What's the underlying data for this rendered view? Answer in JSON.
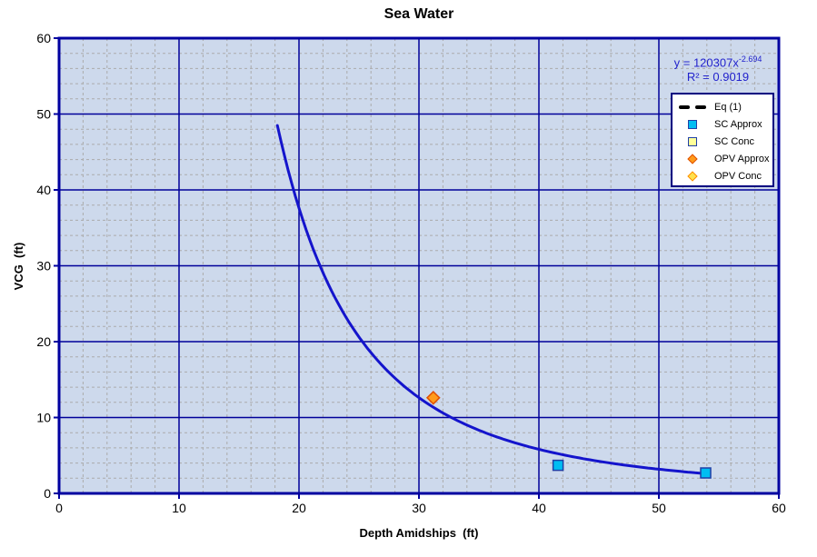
{
  "title": "Sea Water",
  "annotation": {
    "equation_base": "y = 120307x",
    "equation_exponent": "-2.694",
    "r_squared": "R² = 0.9019"
  },
  "colors": {
    "plot_bg": "#CDD9EC",
    "major_grid": "#000099",
    "minor_grid": "#ABABAB",
    "border": "#0000A0",
    "curve": "#1414CC",
    "equation_text": "#2222CC",
    "legend_border": "#000080",
    "legend_bg": "#FFFFFF",
    "text": "#000000"
  },
  "chart_data": {
    "type": "scatter",
    "title": "Sea Water",
    "xlabel": "Depth Amidships  (ft)",
    "ylabel": "VCG  (ft)",
    "xlim": [
      0,
      60
    ],
    "ylim": [
      0,
      60
    ],
    "x_ticks": [
      0,
      10,
      20,
      30,
      40,
      50,
      60
    ],
    "y_ticks": [
      0,
      10,
      20,
      30,
      40,
      50,
      60
    ],
    "minor_step": 2,
    "grid": {
      "major": "solid navy",
      "minor": "dashed gray",
      "minor_interval": 2,
      "major_interval": 10
    },
    "legend_position": "upper-right",
    "trendline": {
      "name": "Eq (1)",
      "equation": "y = 120307x^-2.694",
      "a": 120307,
      "b": -2.694,
      "r2": 0.9019,
      "x_range": [
        18.2,
        53.9
      ],
      "style": "solid"
    },
    "series": [
      {
        "name": "Eq (1)",
        "type": "line",
        "legend_marker": "black-dashed-line",
        "fill": "#000000",
        "stroke": "#000000",
        "points": []
      },
      {
        "name": "SC Approx",
        "type": "scatter",
        "marker": "square",
        "fill": "#00BDF2",
        "stroke": "#1F3FA6",
        "points": [
          [
            41.6,
            3.7
          ],
          [
            53.9,
            2.7
          ]
        ]
      },
      {
        "name": "SC Conc",
        "type": "scatter",
        "marker": "square",
        "fill": "#FFFF99",
        "stroke": "#1F3FA6",
        "points": []
      },
      {
        "name": "OPV Approx",
        "type": "scatter",
        "marker": "diamond",
        "fill": "#FF9B1A",
        "stroke": "#E04F00",
        "points": [
          [
            31.2,
            12.6
          ]
        ]
      },
      {
        "name": "OPV Conc",
        "type": "scatter",
        "marker": "diamond",
        "fill": "#FFE14D",
        "stroke": "#FF8C00",
        "points": []
      }
    ]
  }
}
